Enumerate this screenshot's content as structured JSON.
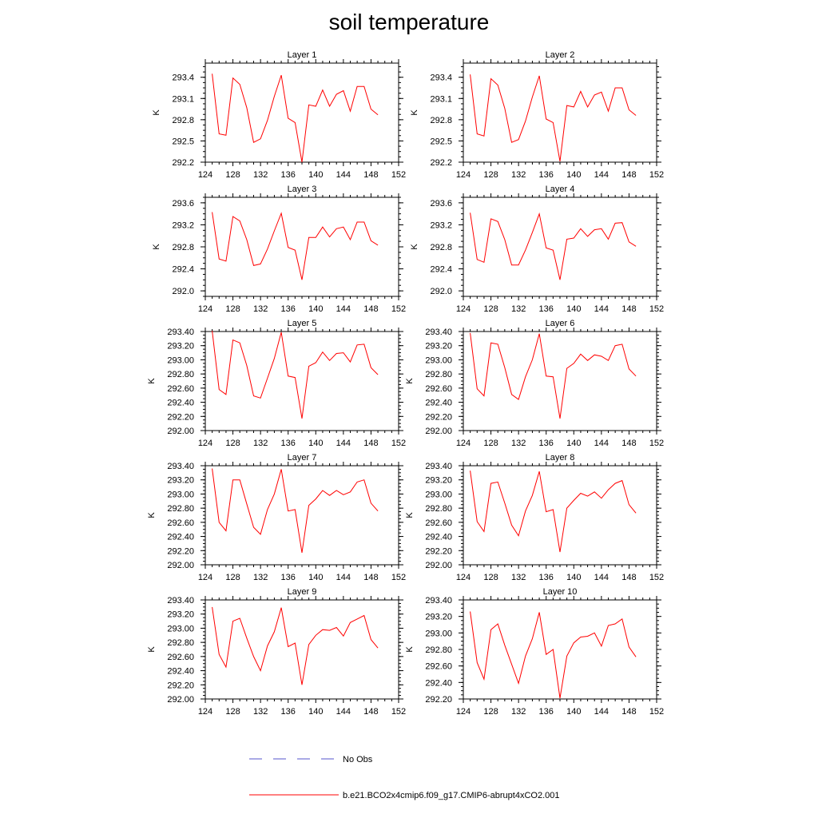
{
  "figure": {
    "title": "soil temperature"
  },
  "legend": {
    "items": [
      {
        "label": "No Obs",
        "color": "#5555cc",
        "style": "dashed"
      },
      {
        "label": "b.e21.BCO2x4cmip6.f09_g17.CMIP6-abrupt4xCO2.001",
        "color": "#ff0000",
        "style": "solid"
      }
    ]
  },
  "chart_data": [
    {
      "type": "line",
      "title": "Layer 1",
      "ylabel": "K",
      "xlim": [
        124,
        152
      ],
      "xticks": [
        "124",
        "128",
        "132",
        "136",
        "140",
        "144",
        "148",
        "152"
      ],
      "ylim": [
        292.2,
        293.6
      ],
      "yticks": [
        "292.2",
        "292.5",
        "292.8",
        "293.1",
        "293.4"
      ],
      "x": [
        125,
        126,
        127,
        128,
        129,
        130,
        131,
        132,
        133,
        134,
        135,
        136,
        137,
        138,
        139,
        140,
        141,
        142,
        143,
        144,
        145,
        146,
        147,
        148,
        149
      ],
      "series": [
        {
          "name": "b.e21.BCO2x4cmip6.f09_g17.CMIP6-abrupt4xCO2.001",
          "color": "#ff0000",
          "values": [
            293.45,
            292.6,
            292.58,
            293.39,
            293.3,
            292.97,
            292.48,
            292.53,
            292.79,
            293.13,
            293.43,
            292.82,
            292.76,
            292.2,
            293.01,
            292.99,
            293.22,
            292.99,
            293.16,
            293.21,
            292.92,
            293.27,
            293.27,
            292.95,
            292.87
          ]
        }
      ]
    },
    {
      "type": "line",
      "title": "Layer 2",
      "ylabel": "K",
      "xlim": [
        124,
        152
      ],
      "xticks": [
        "124",
        "128",
        "132",
        "136",
        "140",
        "144",
        "148",
        "152"
      ],
      "ylim": [
        292.2,
        293.6
      ],
      "yticks": [
        "292.2",
        "292.5",
        "292.8",
        "293.1",
        "293.4"
      ],
      "x": [
        125,
        126,
        127,
        128,
        129,
        130,
        131,
        132,
        133,
        134,
        135,
        136,
        137,
        138,
        139,
        140,
        141,
        142,
        143,
        144,
        145,
        146,
        147,
        148,
        149
      ],
      "series": [
        {
          "name": "b.e21.BCO2x4cmip6.f09_g17.CMIP6-abrupt4xCO2.001",
          "color": "#ff0000",
          "values": [
            293.44,
            292.6,
            292.57,
            293.38,
            293.29,
            292.96,
            292.48,
            292.52,
            292.78,
            293.12,
            293.42,
            292.81,
            292.76,
            292.21,
            293.0,
            292.98,
            293.2,
            292.98,
            293.15,
            293.19,
            292.92,
            293.25,
            293.25,
            292.94,
            292.86
          ]
        }
      ]
    },
    {
      "type": "line",
      "title": "Layer 3",
      "ylabel": "K",
      "xlim": [
        124,
        152
      ],
      "xticks": [
        "124",
        "128",
        "132",
        "136",
        "140",
        "144",
        "148",
        "152"
      ],
      "ylim": [
        291.9,
        293.7
      ],
      "yticks": [
        "292.0",
        "292.4",
        "292.8",
        "293.2",
        "293.6"
      ],
      "x": [
        125,
        126,
        127,
        128,
        129,
        130,
        131,
        132,
        133,
        134,
        135,
        136,
        137,
        138,
        139,
        140,
        141,
        142,
        143,
        144,
        145,
        146,
        147,
        148,
        149
      ],
      "series": [
        {
          "name": "b.e21.BCO2x4cmip6.f09_g17.CMIP6-abrupt4xCO2.001",
          "color": "#ff0000",
          "values": [
            293.43,
            292.58,
            292.54,
            293.35,
            293.27,
            292.93,
            292.46,
            292.49,
            292.76,
            293.09,
            293.41,
            292.79,
            292.74,
            292.2,
            292.97,
            292.97,
            293.16,
            292.98,
            293.13,
            293.16,
            292.93,
            293.25,
            293.25,
            292.91,
            292.83
          ]
        }
      ]
    },
    {
      "type": "line",
      "title": "Layer 4",
      "ylabel": "K",
      "xlim": [
        124,
        152
      ],
      "xticks": [
        "124",
        "128",
        "132",
        "136",
        "140",
        "144",
        "148",
        "152"
      ],
      "ylim": [
        291.9,
        293.7
      ],
      "yticks": [
        "292.0",
        "292.4",
        "292.8",
        "293.2",
        "293.6"
      ],
      "x": [
        125,
        126,
        127,
        128,
        129,
        130,
        131,
        132,
        133,
        134,
        135,
        136,
        137,
        138,
        139,
        140,
        141,
        142,
        143,
        144,
        145,
        146,
        147,
        148,
        149
      ],
      "series": [
        {
          "name": "b.e21.BCO2x4cmip6.f09_g17.CMIP6-abrupt4xCO2.001",
          "color": "#ff0000",
          "values": [
            293.42,
            292.57,
            292.52,
            293.31,
            293.26,
            292.93,
            292.47,
            292.47,
            292.74,
            293.06,
            293.4,
            292.78,
            292.74,
            292.2,
            292.94,
            292.96,
            293.13,
            292.99,
            293.11,
            293.13,
            292.94,
            293.23,
            293.24,
            292.89,
            292.81
          ]
        }
      ]
    },
    {
      "type": "line",
      "title": "Layer 5",
      "ylabel": "K",
      "xlim": [
        124,
        152
      ],
      "xticks": [
        "124",
        "128",
        "132",
        "136",
        "140",
        "144",
        "148",
        "152"
      ],
      "ylim": [
        292.0,
        293.4
      ],
      "yticks": [
        "292.00",
        "292.20",
        "292.40",
        "292.60",
        "292.80",
        "293.00",
        "293.20",
        "293.40"
      ],
      "x": [
        125,
        126,
        127,
        128,
        129,
        130,
        131,
        132,
        133,
        134,
        135,
        136,
        137,
        138,
        139,
        140,
        141,
        142,
        143,
        144,
        145,
        146,
        147,
        148,
        149
      ],
      "series": [
        {
          "name": "b.e21.BCO2x4cmip6.f09_g17.CMIP6-abrupt4xCO2.001",
          "color": "#ff0000",
          "values": [
            293.41,
            292.58,
            292.51,
            293.28,
            293.24,
            292.92,
            292.49,
            292.46,
            292.74,
            293.02,
            293.39,
            292.77,
            292.75,
            292.17,
            292.91,
            292.96,
            293.11,
            292.99,
            293.09,
            293.1,
            292.97,
            293.21,
            293.22,
            292.89,
            292.79
          ]
        }
      ]
    },
    {
      "type": "line",
      "title": "Layer 6",
      "ylabel": "K",
      "xlim": [
        124,
        152
      ],
      "xticks": [
        "124",
        "128",
        "132",
        "136",
        "140",
        "144",
        "148",
        "152"
      ],
      "ylim": [
        292.0,
        293.4
      ],
      "yticks": [
        "292.00",
        "292.20",
        "292.40",
        "292.60",
        "292.80",
        "293.00",
        "293.20",
        "293.40"
      ],
      "x": [
        125,
        126,
        127,
        128,
        129,
        130,
        131,
        132,
        133,
        134,
        135,
        136,
        137,
        138,
        139,
        140,
        141,
        142,
        143,
        144,
        145,
        146,
        147,
        148,
        149
      ],
      "series": [
        {
          "name": "b.e21.BCO2x4cmip6.f09_g17.CMIP6-abrupt4xCO2.001",
          "color": "#ff0000",
          "values": [
            293.38,
            292.59,
            292.49,
            293.24,
            293.22,
            292.89,
            292.51,
            292.44,
            292.76,
            293.0,
            293.37,
            292.77,
            292.76,
            292.17,
            292.88,
            292.95,
            293.08,
            292.99,
            293.07,
            293.05,
            292.99,
            293.2,
            293.22,
            292.87,
            292.77
          ]
        }
      ]
    },
    {
      "type": "line",
      "title": "Layer 7",
      "ylabel": "K",
      "xlim": [
        124,
        152
      ],
      "xticks": [
        "124",
        "128",
        "132",
        "136",
        "140",
        "144",
        "148",
        "152"
      ],
      "ylim": [
        292.0,
        293.4
      ],
      "yticks": [
        "292.00",
        "292.20",
        "292.40",
        "292.60",
        "292.80",
        "293.00",
        "293.20",
        "293.40"
      ],
      "x": [
        125,
        126,
        127,
        128,
        129,
        130,
        131,
        132,
        133,
        134,
        135,
        136,
        137,
        138,
        139,
        140,
        141,
        142,
        143,
        144,
        145,
        146,
        147,
        148,
        149
      ],
      "series": [
        {
          "name": "b.e21.BCO2x4cmip6.f09_g17.CMIP6-abrupt4xCO2.001",
          "color": "#ff0000",
          "values": [
            293.36,
            292.6,
            292.48,
            293.2,
            293.2,
            292.86,
            292.53,
            292.43,
            292.78,
            293.0,
            293.35,
            292.76,
            292.78,
            292.17,
            292.84,
            292.93,
            293.05,
            292.98,
            293.05,
            292.99,
            293.03,
            293.17,
            293.2,
            292.87,
            292.76
          ]
        }
      ]
    },
    {
      "type": "line",
      "title": "Layer 8",
      "ylabel": "K",
      "xlim": [
        124,
        152
      ],
      "xticks": [
        "124",
        "128",
        "132",
        "136",
        "140",
        "144",
        "148",
        "152"
      ],
      "ylim": [
        292.0,
        293.4
      ],
      "yticks": [
        "292.00",
        "292.20",
        "292.40",
        "292.60",
        "292.80",
        "293.00",
        "293.20",
        "293.40"
      ],
      "x": [
        125,
        126,
        127,
        128,
        129,
        130,
        131,
        132,
        133,
        134,
        135,
        136,
        137,
        138,
        139,
        140,
        141,
        142,
        143,
        144,
        145,
        146,
        147,
        148,
        149
      ],
      "series": [
        {
          "name": "b.e21.BCO2x4cmip6.f09_g17.CMIP6-abrupt4xCO2.001",
          "color": "#ff0000",
          "values": [
            293.33,
            292.61,
            292.47,
            293.15,
            293.17,
            292.87,
            292.56,
            292.41,
            292.76,
            292.98,
            293.32,
            292.75,
            292.78,
            292.18,
            292.8,
            292.91,
            293.01,
            292.97,
            293.03,
            292.94,
            293.06,
            293.15,
            293.19,
            292.85,
            292.73
          ]
        }
      ]
    },
    {
      "type": "line",
      "title": "Layer 9",
      "ylabel": "K",
      "xlim": [
        124,
        152
      ],
      "xticks": [
        "124",
        "128",
        "132",
        "136",
        "140",
        "144",
        "148",
        "152"
      ],
      "ylim": [
        292.0,
        293.4
      ],
      "yticks": [
        "292.00",
        "292.20",
        "292.40",
        "292.60",
        "292.80",
        "293.00",
        "293.20",
        "293.40"
      ],
      "x": [
        125,
        126,
        127,
        128,
        129,
        130,
        131,
        132,
        133,
        134,
        135,
        136,
        137,
        138,
        139,
        140,
        141,
        142,
        143,
        144,
        145,
        146,
        147,
        148,
        149
      ],
      "series": [
        {
          "name": "b.e21.BCO2x4cmip6.f09_g17.CMIP6-abrupt4xCO2.001",
          "color": "#ff0000",
          "values": [
            293.3,
            292.63,
            292.45,
            293.1,
            293.14,
            292.86,
            292.6,
            292.4,
            292.75,
            292.95,
            293.29,
            292.74,
            292.79,
            292.2,
            292.77,
            292.9,
            292.98,
            292.97,
            293.01,
            292.89,
            293.08,
            293.13,
            293.18,
            292.84,
            292.72
          ]
        }
      ]
    },
    {
      "type": "line",
      "title": "Layer 10",
      "ylabel": "K",
      "xlim": [
        124,
        152
      ],
      "xticks": [
        "124",
        "128",
        "132",
        "136",
        "140",
        "144",
        "148",
        "152"
      ],
      "ylim": [
        292.2,
        293.4
      ],
      "yticks": [
        "292.20",
        "292.40",
        "292.60",
        "292.80",
        "293.00",
        "293.20",
        "293.40"
      ],
      "x": [
        125,
        126,
        127,
        128,
        129,
        130,
        131,
        132,
        133,
        134,
        135,
        136,
        137,
        138,
        139,
        140,
        141,
        142,
        143,
        144,
        145,
        146,
        147,
        148,
        149
      ],
      "series": [
        {
          "name": "b.e21.BCO2x4cmip6.f09_g17.CMIP6-abrupt4xCO2.001",
          "color": "#ff0000",
          "values": [
            293.26,
            292.64,
            292.44,
            293.04,
            293.11,
            292.85,
            292.62,
            292.39,
            292.72,
            292.93,
            293.25,
            292.74,
            292.8,
            292.21,
            292.72,
            292.88,
            292.95,
            292.96,
            293.0,
            292.84,
            293.09,
            293.11,
            293.17,
            292.83,
            292.71
          ]
        }
      ]
    }
  ]
}
